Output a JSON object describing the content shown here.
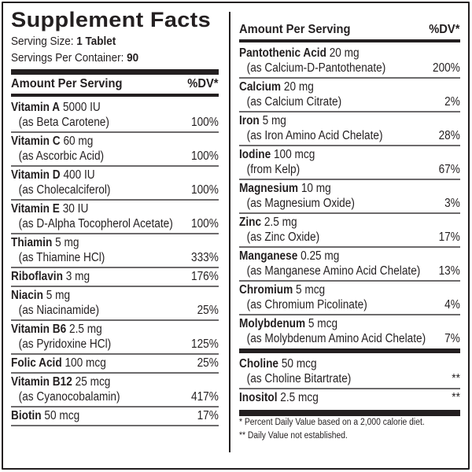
{
  "title": "Supplement Facts",
  "serving_size_label": "Serving Size:",
  "serving_size_value": "1 Tablet",
  "servings_per_container_label": "Servings Per Container:",
  "servings_per_container_value": "90",
  "left": {
    "header": {
      "amount": "Amount Per Serving",
      "dv": "%DV*"
    },
    "rows": [
      {
        "name": "Vitamin A",
        "amount": "5000 IU",
        "source": "(as Beta Carotene)",
        "dv": "100%"
      },
      {
        "name": "Vitamin C",
        "amount": "60 mg",
        "source": "(as Ascorbic Acid)",
        "dv": "100%"
      },
      {
        "name": "Vitamin D",
        "amount": "400 IU",
        "source": "(as Cholecalciferol)",
        "dv": "100%"
      },
      {
        "name": "Vitamin E",
        "amount": "30 IU",
        "source": "(as D-Alpha Tocopherol Acetate)",
        "dv": "100%"
      },
      {
        "name": "Thiamin",
        "amount": "5 mg",
        "source": "(as Thiamine HCl)",
        "dv": "333%"
      },
      {
        "name": "Riboflavin",
        "amount": "3 mg",
        "source": "",
        "dv": "176%"
      },
      {
        "name": "Niacin",
        "amount": "5 mg",
        "source": "(as Niacinamide)",
        "dv": "25%"
      },
      {
        "name": "Vitamin B6",
        "amount": "2.5 mg",
        "source": "(as Pyridoxine HCl)",
        "dv": "125%"
      },
      {
        "name": "Folic Acid",
        "amount": "100 mcg",
        "source": "",
        "dv": "25%"
      },
      {
        "name": "Vitamin B12",
        "amount": "25 mcg",
        "source": "(as Cyanocobalamin)",
        "dv": "417%"
      },
      {
        "name": "Biotin",
        "amount": "50 mcg",
        "source": "",
        "dv": "17%"
      }
    ]
  },
  "right": {
    "header": {
      "amount": "Amount Per Serving",
      "dv": "%DV*"
    },
    "rows": [
      {
        "name": "Pantothenic Acid",
        "amount": "20 mg",
        "source": "(as Calcium-D-Pantothenate)",
        "dv": "200%"
      },
      {
        "name": "Calcium",
        "amount": "20 mg",
        "source": "(as Calcium Citrate)",
        "dv": "2%"
      },
      {
        "name": "Iron",
        "amount": "5 mg",
        "source": "(as Iron Amino Acid Chelate)",
        "dv": "28%"
      },
      {
        "name": "Iodine",
        "amount": "100 mcg",
        "source": "(from Kelp)",
        "dv": "67%"
      },
      {
        "name": "Magnesium",
        "amount": "10 mg",
        "source": "(as Magnesium Oxide)",
        "dv": "3%"
      },
      {
        "name": "Zinc",
        "amount": "2.5 mg",
        "source": "(as Zinc Oxide)",
        "dv": "17%"
      },
      {
        "name": "Manganese",
        "amount": "0.25 mg",
        "source": "(as Manganese Amino Acid Chelate)",
        "dv": "13%"
      },
      {
        "name": "Chromium",
        "amount": "5 mcg",
        "source": "(as Chromium Picolinate)",
        "dv": "4%"
      },
      {
        "name": "Molybdenum",
        "amount": "5 mcg",
        "source": "(as Molybdenum Amino Acid Chelate)",
        "dv": "7%"
      }
    ],
    "other_rows": [
      {
        "name": "Choline",
        "amount": "50 mcg",
        "source": "(as Choline Bitartrate)",
        "dv": "**"
      },
      {
        "name": "Inositol",
        "amount": "2.5 mcg",
        "source": "",
        "dv": "**"
      }
    ],
    "footnotes": [
      "*  Percent Daily Value based on a 2,000 calorie diet.",
      "** Daily Value not established."
    ]
  }
}
